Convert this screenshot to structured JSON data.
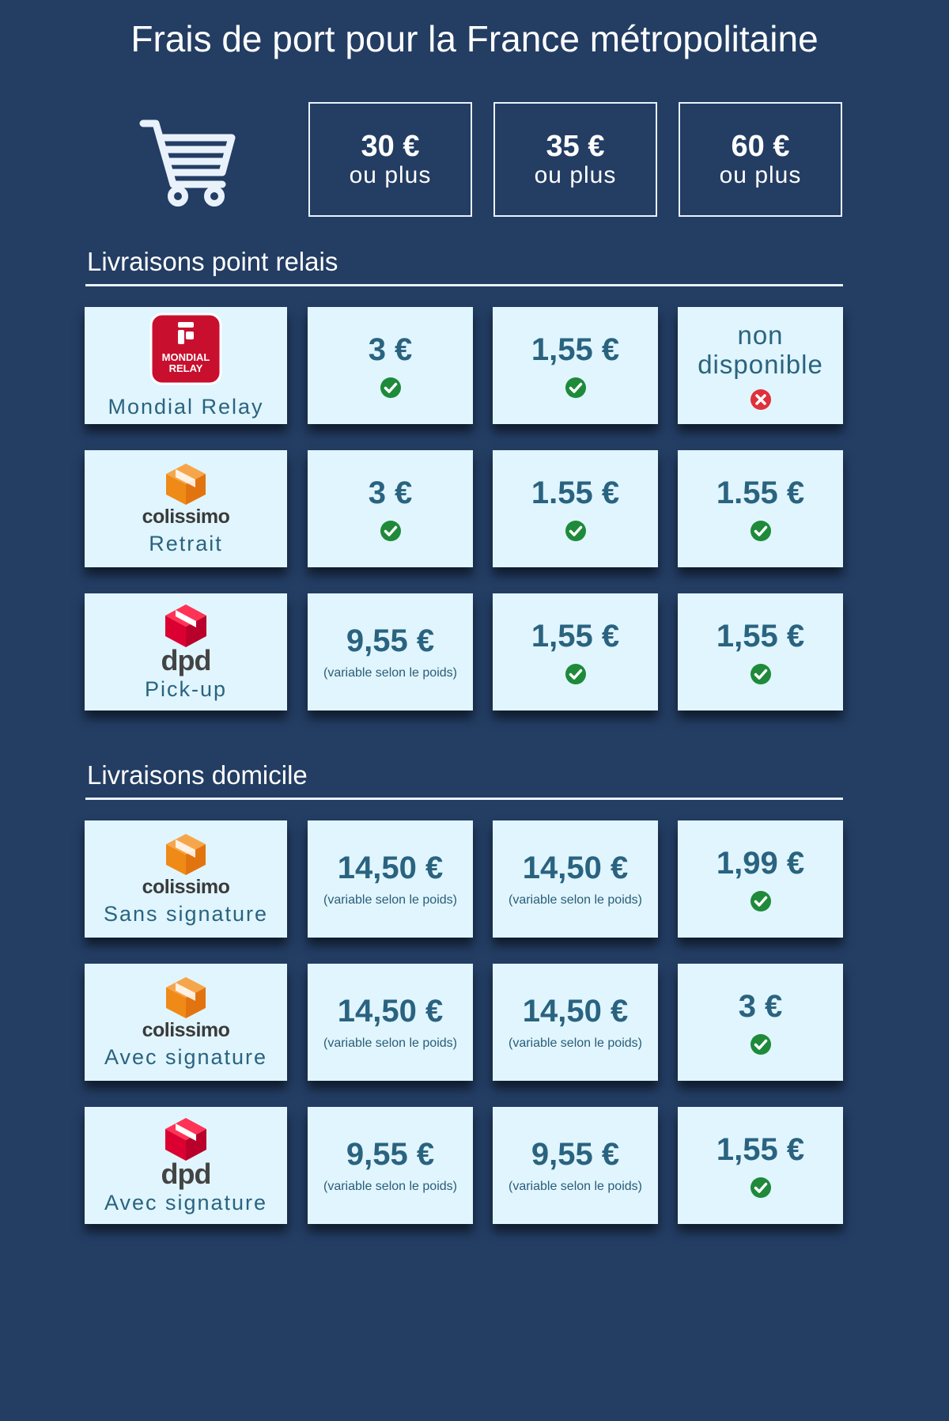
{
  "title": "Frais de port pour la France métropolitaine",
  "thresholds": [
    {
      "amount": "30 €",
      "label": "ou plus"
    },
    {
      "amount": "35 €",
      "label": "ou plus"
    },
    {
      "amount": "60 €",
      "label": "ou plus"
    }
  ],
  "sections": {
    "relais": {
      "title": "Livraisons point relais",
      "rows": [
        {
          "logo": "mondial-relay-logo",
          "logo_text": "MONDIAL RELAY",
          "label": "Mondial Relay",
          "cells": [
            {
              "price": "3 €",
              "status": "ok"
            },
            {
              "price": "1,55 €",
              "status": "ok"
            },
            {
              "price": "non disponible",
              "status": "no"
            }
          ]
        },
        {
          "logo": "colissimo-logo",
          "logo_text": "colissimo",
          "label": "Retrait",
          "cells": [
            {
              "price": "3 €",
              "status": "ok"
            },
            {
              "price": "1.55 €",
              "status": "ok"
            },
            {
              "price": "1.55 €",
              "status": "ok"
            }
          ]
        },
        {
          "logo": "dpd-logo",
          "logo_text": "dpd",
          "label": "Pick-up",
          "cells": [
            {
              "price": "9,55 €",
              "note": "(variable selon le poids)"
            },
            {
              "price": "1,55 €",
              "status": "ok"
            },
            {
              "price": "1,55 €",
              "status": "ok"
            }
          ]
        }
      ]
    },
    "domicile": {
      "title": "Livraisons domicile",
      "rows": [
        {
          "logo": "colissimo-logo",
          "logo_text": "colissimo",
          "label": "Sans signature",
          "cells": [
            {
              "price": "14,50 €",
              "note": "(variable selon le poids)"
            },
            {
              "price": "14,50 €",
              "note": "(variable selon le poids)"
            },
            {
              "price": "1,99 €",
              "status": "ok"
            }
          ]
        },
        {
          "logo": "colissimo-logo",
          "logo_text": "colissimo",
          "label": "Avec signature",
          "cells": [
            {
              "price": "14,50 €",
              "note": "(variable selon le poids)"
            },
            {
              "price": "14,50 €",
              "note": "(variable selon le poids)"
            },
            {
              "price": "3 €",
              "status": "ok"
            }
          ]
        },
        {
          "logo": "dpd-logo",
          "logo_text": "dpd",
          "label": "Avec signature",
          "cells": [
            {
              "price": "9,55 €",
              "note": "(variable selon le poids)"
            },
            {
              "price": "9,55 €",
              "note": "(variable selon le poids)"
            },
            {
              "price": "1,55 €",
              "status": "ok"
            }
          ]
        }
      ]
    }
  },
  "colors": {
    "background": "#233d63",
    "card": "#e0f5fd",
    "text": "#2a6380",
    "ok": "#1e8a3a",
    "no": "#e0313b",
    "colissimo": "#f08a1c",
    "dpd": "#dc0032",
    "mondial_relay": "#c8102e"
  }
}
